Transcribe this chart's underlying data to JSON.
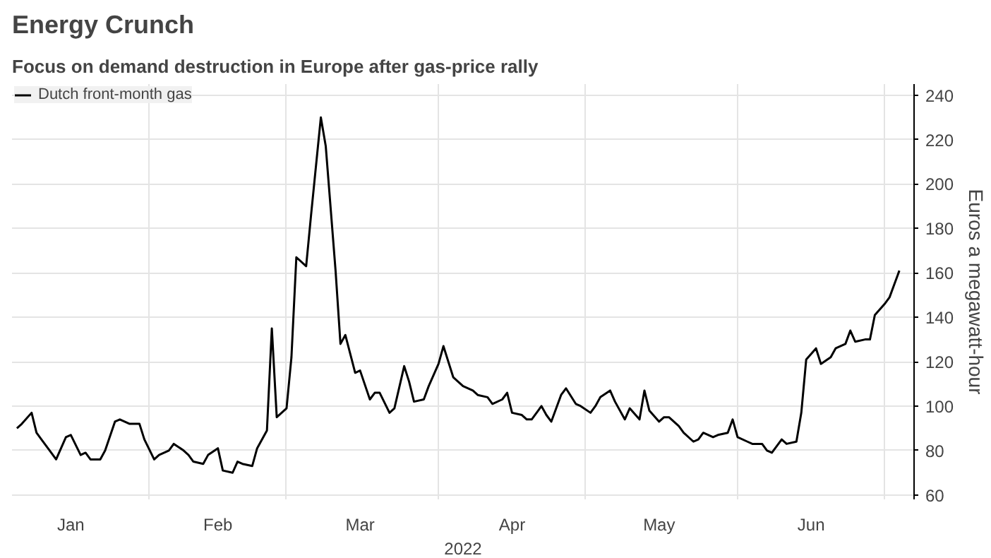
{
  "chart_data": {
    "type": "line",
    "title": "Energy Crunch",
    "subtitle": "Focus on demand destruction in Europe after gas-price rally",
    "xlabel": "2022",
    "ylabel": "Euros a megawatt-hour",
    "x": [
      "2022-01-05",
      "2022-01-06",
      "2022-01-08",
      "2022-01-09",
      "2022-01-10",
      "2022-01-12",
      "2022-01-13",
      "2022-01-15",
      "2022-01-16",
      "2022-01-18",
      "2022-01-19",
      "2022-01-20",
      "2022-01-22",
      "2022-01-23",
      "2022-01-25",
      "2022-01-26",
      "2022-01-28",
      "2022-01-30",
      "2022-01-31",
      "2022-02-02",
      "2022-02-03",
      "2022-02-05",
      "2022-02-06",
      "2022-02-08",
      "2022-02-09",
      "2022-02-10",
      "2022-02-12",
      "2022-02-13",
      "2022-02-15",
      "2022-02-16",
      "2022-02-18",
      "2022-02-19",
      "2022-02-20",
      "2022-02-22",
      "2022-02-23",
      "2022-02-25",
      "2022-02-26",
      "2022-02-27",
      "2022-03-01",
      "2022-03-02",
      "2022-03-03",
      "2022-03-05",
      "2022-03-06",
      "2022-03-08",
      "2022-03-09",
      "2022-03-11",
      "2022-03-12",
      "2022-03-13",
      "2022-03-15",
      "2022-03-16",
      "2022-03-18",
      "2022-03-19",
      "2022-03-20",
      "2022-03-22",
      "2022-03-23",
      "2022-03-25",
      "2022-03-26",
      "2022-03-27",
      "2022-03-29",
      "2022-03-30",
      "2022-04-01",
      "2022-04-02",
      "2022-04-04",
      "2022-04-05",
      "2022-04-06",
      "2022-04-08",
      "2022-04-09",
      "2022-04-11",
      "2022-04-12",
      "2022-04-14",
      "2022-04-15",
      "2022-04-16",
      "2022-04-18",
      "2022-04-19",
      "2022-04-20",
      "2022-04-22",
      "2022-04-23",
      "2022-04-24",
      "2022-04-26",
      "2022-04-27",
      "2022-04-29",
      "2022-04-30",
      "2022-05-02",
      "2022-05-03",
      "2022-05-04",
      "2022-05-06",
      "2022-05-07",
      "2022-05-09",
      "2022-05-10",
      "2022-05-12",
      "2022-05-13",
      "2022-05-14",
      "2022-05-16",
      "2022-05-17",
      "2022-05-18",
      "2022-05-20",
      "2022-05-21",
      "2022-05-23",
      "2022-05-24",
      "2022-05-25",
      "2022-05-27",
      "2022-05-28",
      "2022-05-30",
      "2022-05-31",
      "2022-06-01",
      "2022-06-03",
      "2022-06-04",
      "2022-06-06",
      "2022-06-07",
      "2022-06-08",
      "2022-06-10",
      "2022-06-11",
      "2022-06-13",
      "2022-06-14",
      "2022-06-15",
      "2022-06-17",
      "2022-06-18",
      "2022-06-20",
      "2022-06-21",
      "2022-06-23",
      "2022-06-24",
      "2022-06-25",
      "2022-06-27",
      "2022-06-28",
      "2022-06-29",
      "2022-07-01",
      "2022-07-02",
      "2022-07-04"
    ],
    "series": [
      {
        "name": "Dutch front-month gas",
        "color": "#000000",
        "values": [
          90,
          92,
          97,
          88,
          85,
          79,
          76,
          86,
          87,
          78,
          79,
          76,
          76,
          80,
          93,
          94,
          92,
          92,
          85,
          76,
          78,
          80,
          83,
          80,
          78,
          75,
          74,
          78,
          81,
          71,
          70,
          75,
          74,
          73,
          81,
          89,
          135,
          95,
          99,
          122,
          167,
          163,
          186,
          230,
          217,
          161,
          128,
          132,
          115,
          116,
          103,
          106,
          106,
          97,
          99,
          118,
          111,
          102,
          103,
          109,
          119,
          127,
          113,
          111,
          109,
          107,
          105,
          104,
          101,
          103,
          106,
          97,
          96,
          94,
          94,
          100,
          96,
          93,
          105,
          108,
          101,
          100,
          97,
          100,
          104,
          107,
          102,
          94,
          99,
          94,
          107,
          98,
          93,
          95,
          95,
          91,
          88,
          84,
          85,
          88,
          86,
          87,
          88,
          94,
          86,
          84,
          83,
          83,
          80,
          79,
          85,
          83,
          84,
          97,
          121,
          126,
          119,
          122,
          126,
          128,
          134,
          129,
          130,
          130,
          141,
          146,
          149,
          161
        ]
      }
    ],
    "xlim": [
      "2022-01-04",
      "2022-07-07"
    ],
    "xticks": [
      {
        "value": "2022-01-16",
        "label": "Jan"
      },
      {
        "value": "2022-02-01",
        "label": null
      },
      {
        "value": "2022-02-15",
        "label": "Feb"
      },
      {
        "value": "2022-03-01",
        "label": null
      },
      {
        "value": "2022-03-16",
        "label": "Mar"
      },
      {
        "value": "2022-04-01",
        "label": null
      },
      {
        "value": "2022-04-16",
        "label": "Apr"
      },
      {
        "value": "2022-05-01",
        "label": null
      },
      {
        "value": "2022-05-16",
        "label": "May"
      },
      {
        "value": "2022-06-01",
        "label": null
      },
      {
        "value": "2022-06-16",
        "label": "Jun"
      },
      {
        "value": "2022-07-01",
        "label": null
      }
    ],
    "ylim": [
      58,
      245
    ],
    "yticks": [
      60,
      80,
      100,
      120,
      140,
      160,
      180,
      200,
      220,
      240
    ],
    "grid": true,
    "legend": "top left",
    "line_style": "solid"
  }
}
